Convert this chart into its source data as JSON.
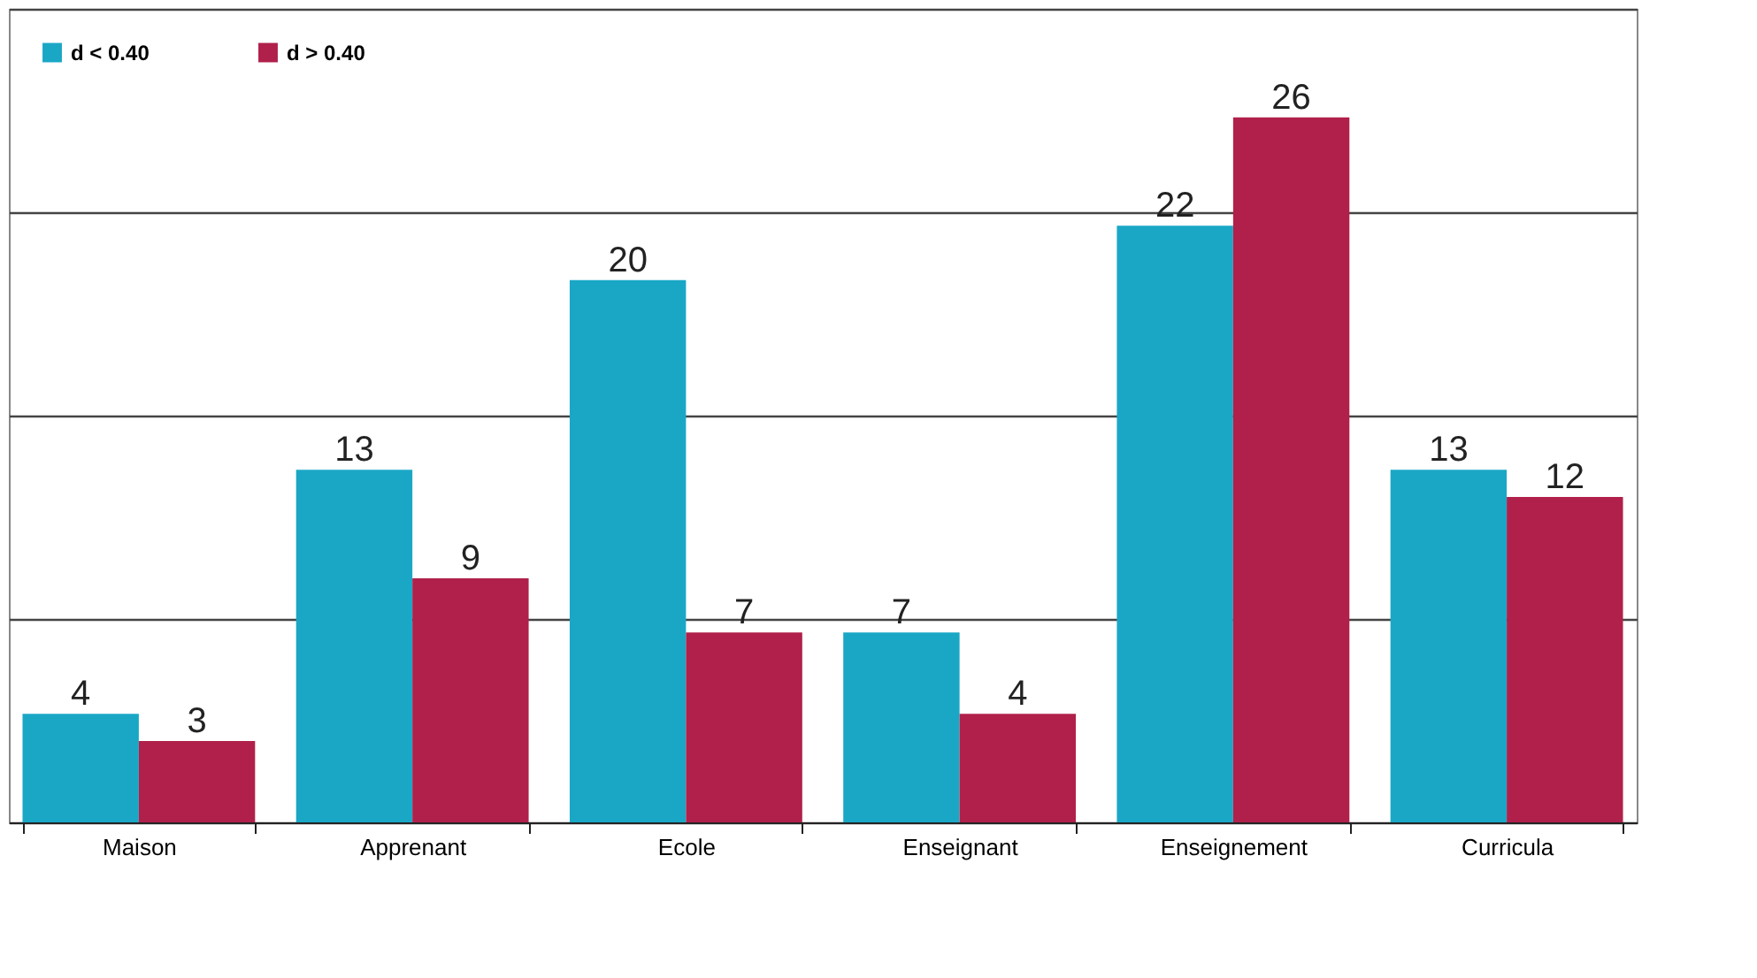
{
  "chart_data": {
    "type": "bar",
    "categories": [
      "Maison",
      "Apprenant",
      "Ecole",
      "Enseignant",
      "Enseignement",
      "Curricula"
    ],
    "series": [
      {
        "name": "d < 0.40",
        "color": "#1aa7c6",
        "values": [
          4,
          13,
          20,
          7,
          22,
          13
        ]
      },
      {
        "name": "d > 0.40",
        "color": "#b0204a",
        "values": [
          3,
          9,
          7,
          4,
          26,
          12
        ]
      }
    ],
    "ylim": [
      0,
      30
    ],
    "yticks": [
      {
        "value": 0,
        "label": null
      },
      {
        "value": 7.5,
        "label": null
      },
      {
        "value": 15,
        "label": null
      },
      {
        "value": 22.5,
        "label": null
      },
      {
        "value": 30,
        "label": null
      }
    ],
    "grid": "y",
    "legend": "top left",
    "data_labels": true,
    "tick_labels": "x"
  }
}
